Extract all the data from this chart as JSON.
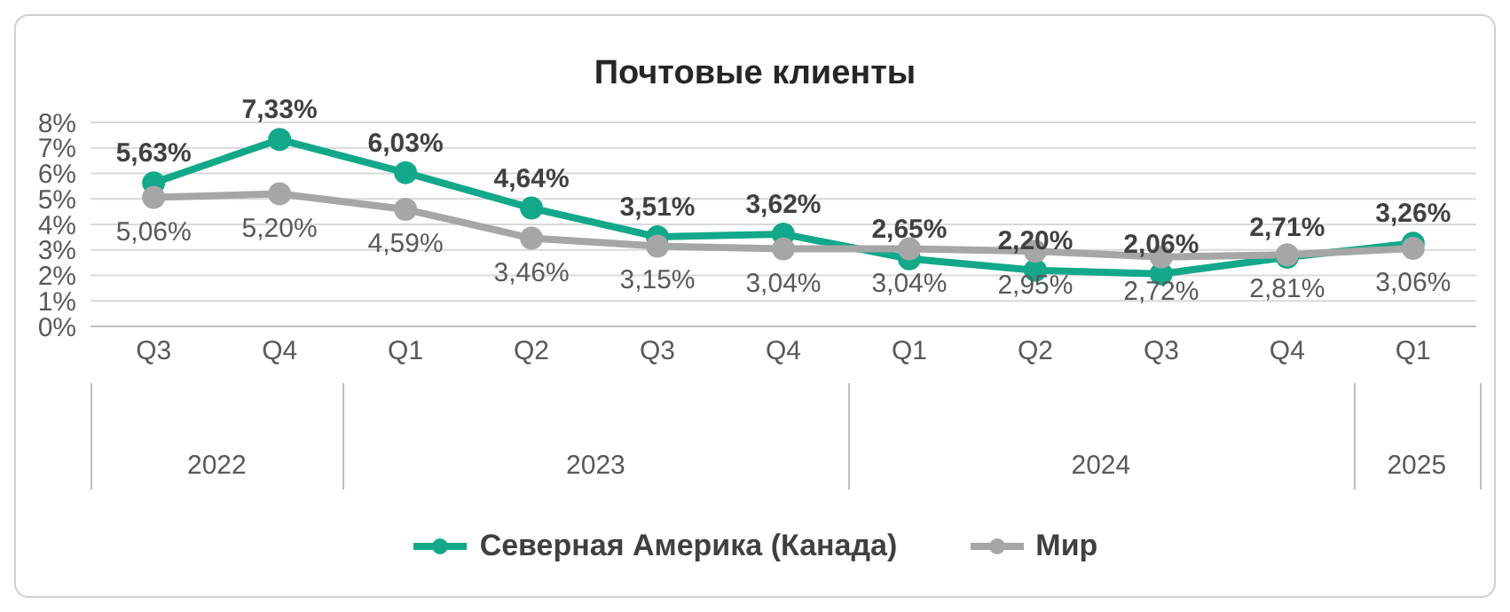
{
  "chart_data": {
    "type": "line",
    "title": "Почтовые клиенты",
    "categories": [
      "Q3",
      "Q4",
      "Q1",
      "Q2",
      "Q3",
      "Q4",
      "Q1",
      "Q2",
      "Q3",
      "Q4",
      "Q1"
    ],
    "series": [
      {
        "name": "Северная Америка (Канада)",
        "color": "#13a88a",
        "values": [
          5.63,
          7.33,
          6.03,
          4.64,
          3.51,
          3.62,
          2.65,
          2.2,
          2.06,
          2.71,
          3.26
        ],
        "value_labels": [
          "5,63%",
          "7,33%",
          "6,03%",
          "4,64%",
          "3,51%",
          "3,62%",
          "2,65%",
          "2,20%",
          "2,06%",
          "2,71%",
          "3,26%"
        ]
      },
      {
        "name": "Мир",
        "color": "#a6a6a6",
        "values": [
          5.06,
          5.2,
          4.59,
          3.46,
          3.15,
          3.04,
          3.04,
          2.95,
          2.72,
          2.81,
          3.06
        ],
        "value_labels": [
          "5,06%",
          "5,20%",
          "4,59%",
          "3,46%",
          "3,15%",
          "3,04%",
          "3,04%",
          "2,95%",
          "2,72%",
          "2,81%",
          "3,06%"
        ]
      }
    ],
    "annotations": [
      "2022",
      "2023",
      "2024",
      "2025"
    ],
    "ylim": [
      0,
      8
    ],
    "yticks": [
      {
        "value": 0,
        "label": "0%"
      },
      {
        "value": 1,
        "label": "1%"
      },
      {
        "value": 2,
        "label": "2%"
      },
      {
        "value": 3,
        "label": "3%"
      },
      {
        "value": 4,
        "label": "4%"
      },
      {
        "value": 5,
        "label": "5%"
      },
      {
        "value": 6,
        "label": "6%"
      },
      {
        "value": 7,
        "label": "7%"
      },
      {
        "value": 8,
        "label": "8%"
      }
    ],
    "grid": "y",
    "legend": "bottom",
    "marker": "circle",
    "line_style": "solid"
  }
}
